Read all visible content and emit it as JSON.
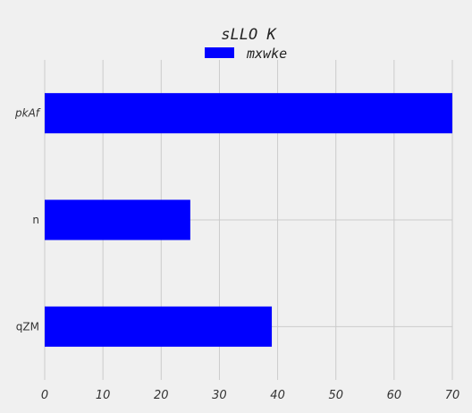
{
  "chart_data": {
    "type": "bar",
    "orientation": "horizontal",
    "title": "sLLO K",
    "categories": [
      "pkAf",
      "n",
      "qZM"
    ],
    "series": [
      {
        "name": "mxwke",
        "values": [
          70,
          25,
          39
        ],
        "color": "#0000ff"
      }
    ],
    "xlim": [
      0,
      70
    ],
    "x_ticks": [
      0,
      10,
      20,
      30,
      40,
      50,
      60,
      70
    ],
    "xlabel": "",
    "ylabel": "",
    "grid": true,
    "legend": "top-center",
    "background": "#f0f0f0",
    "grid_color": "#cbcbcb"
  }
}
